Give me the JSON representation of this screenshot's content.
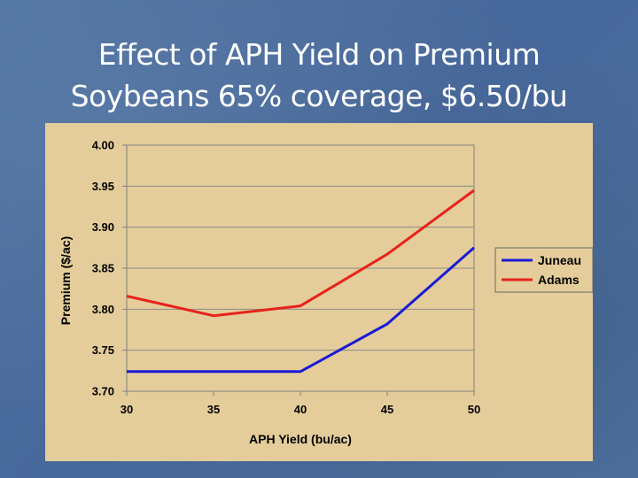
{
  "slide": {
    "title_line1": "Effect of APH Yield on Premium",
    "title_line2": "Soybeans 65% coverage, $6.50/bu"
  },
  "colors": {
    "background": "#4a6d9a",
    "chart_panel": "#e4cd9a",
    "juneau": "#1a1ad6",
    "adams": "#e8221a"
  },
  "chart_data": {
    "type": "line",
    "title": "",
    "xlabel": "APH Yield (bu/ac)",
    "ylabel": "Premium ($/ac)",
    "x": [
      30,
      35,
      40,
      45,
      50
    ],
    "x_ticks": [
      "30",
      "35",
      "40",
      "45",
      "50"
    ],
    "y_ticks": [
      "3.70",
      "3.75",
      "3.80",
      "3.85",
      "3.90",
      "3.95",
      "4.00"
    ],
    "xlim": [
      30,
      50
    ],
    "ylim": [
      3.7,
      4.0
    ],
    "grid": "horizontal",
    "legend_position": "right",
    "series": [
      {
        "name": "Juneau",
        "color": "#1a1ad6",
        "values": [
          3.724,
          3.724,
          3.724,
          3.782,
          3.875
        ]
      },
      {
        "name": "Adams",
        "color": "#e8221a",
        "values": [
          3.816,
          3.792,
          3.804,
          3.867,
          3.945
        ]
      }
    ]
  }
}
